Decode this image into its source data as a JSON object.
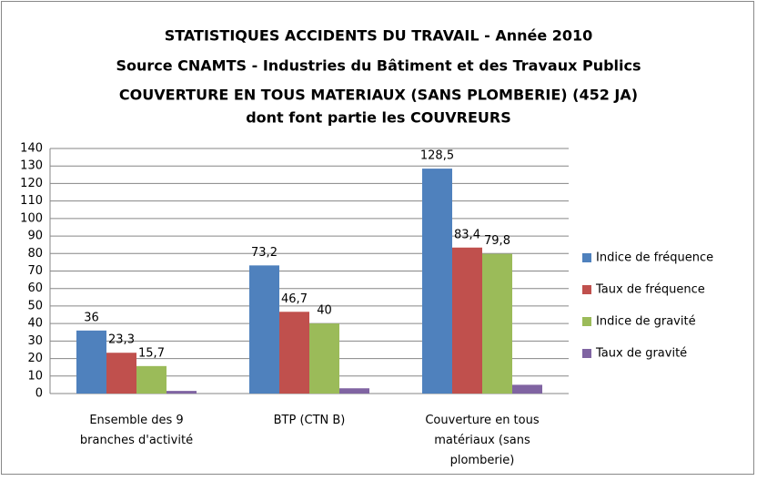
{
  "chart_data": {
    "type": "bar",
    "title": [
      "STATISTIQUES ACCIDENTS DU TRAVAIL - Année 2010",
      "Source CNAMTS - Industries du Bâtiment et des Travaux Publics",
      "COUVERTURE EN TOUS MATERIAUX (SANS PLOMBERIE) (452 JA)",
      "dont font partie les COUVREURS"
    ],
    "categories": [
      "Ensemble des 9 branches d'activité",
      "BTP (CTN B)",
      "Couverture en tous matériaux (sans plomberie)"
    ],
    "series": [
      {
        "name": "Indice de fréquence",
        "color": "#4f81bd",
        "values": [
          36,
          73.2,
          128.5
        ],
        "value_labels": [
          "36",
          "73,2",
          "128,5"
        ]
      },
      {
        "name": "Taux de fréquence",
        "color": "#c0504d",
        "values": [
          23.3,
          46.7,
          83.4
        ],
        "value_labels": [
          "23,3",
          "46,7",
          "83,4"
        ]
      },
      {
        "name": "Indice de gravité",
        "color": "#9bbb59",
        "values": [
          15.7,
          40,
          79.8
        ],
        "value_labels": [
          "15,7",
          "40",
          "79,8"
        ]
      },
      {
        "name": "Taux de gravité",
        "color": "#8064a2",
        "values": [
          1.5,
          3,
          5
        ]
      }
    ],
    "ylim": [
      0,
      140
    ],
    "yticks": [
      0,
      10,
      20,
      30,
      40,
      50,
      60,
      70,
      80,
      90,
      100,
      110,
      120,
      130,
      140
    ],
    "grid": true,
    "legend": "right"
  }
}
